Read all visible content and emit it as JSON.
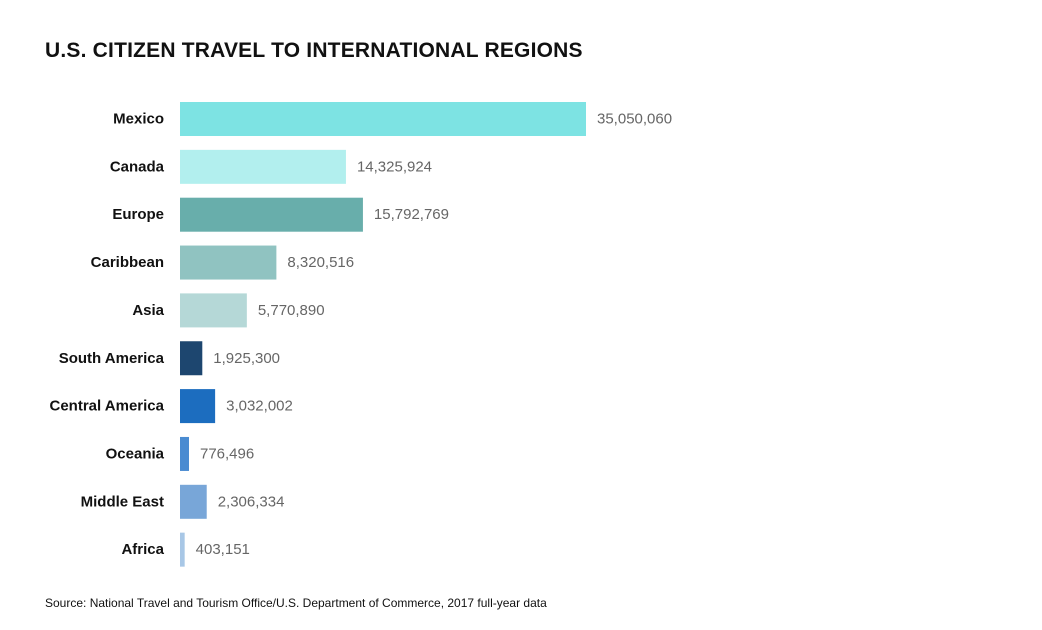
{
  "chart_data": {
    "type": "bar",
    "orientation": "horizontal",
    "title": "U.S. CITIZEN TRAVEL TO INTERNATIONAL REGIONS",
    "categories": [
      "Mexico",
      "Canada",
      "Europe",
      "Caribbean",
      "Asia",
      "South America",
      "Central America",
      "Oceania",
      "Middle East",
      "Africa"
    ],
    "values": [
      35050060,
      14325924,
      15792769,
      8320516,
      5770890,
      1925300,
      3032002,
      776496,
      2306334,
      403151
    ],
    "value_labels": [
      "35,050,060",
      "14,325,924",
      "15,792,769",
      "8,320,516",
      "5,770,890",
      "1,925,300",
      "3,032,002",
      "776,496",
      "2,306,334",
      "403,151"
    ],
    "colors": [
      "#7de3e3",
      "#b2efee",
      "#68aeab",
      "#90c3c1",
      "#b5d8d7",
      "#1d466f",
      "#1c6dbf",
      "#4a8bd1",
      "#78a6d8",
      "#a8c7e6"
    ],
    "xlim": [
      0,
      35050060
    ],
    "grid": false,
    "legend": "none",
    "source": "Source: National Travel and Tourism Office/U.S. Department of Commerce, 2017 full-year data"
  }
}
